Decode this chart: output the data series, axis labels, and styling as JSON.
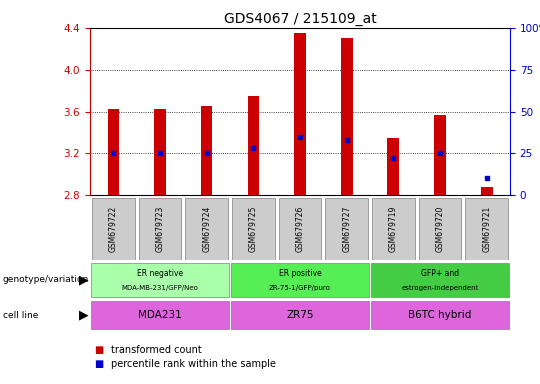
{
  "title": "GDS4067 / 215109_at",
  "samples": [
    "GSM679722",
    "GSM679723",
    "GSM679724",
    "GSM679725",
    "GSM679726",
    "GSM679727",
    "GSM679719",
    "GSM679720",
    "GSM679721"
  ],
  "bar_values": [
    3.62,
    3.62,
    3.65,
    3.75,
    4.35,
    4.3,
    3.35,
    3.57,
    2.88
  ],
  "bar_base": 2.8,
  "percentile_values": [
    25,
    25,
    25,
    28,
    35,
    33,
    22,
    25,
    10
  ],
  "ymin": 2.8,
  "ymax": 4.4,
  "yticks": [
    2.8,
    3.2,
    3.6,
    4.0,
    4.4
  ],
  "right_yticks": [
    0,
    25,
    50,
    75,
    100
  ],
  "bar_color": "#cc0000",
  "dot_color": "#0000cc",
  "genotype_groups": [
    {
      "label": "ER negative\nMDA-MB-231/GFP/Neo",
      "start": 0,
      "end": 3,
      "color": "#aaffaa"
    },
    {
      "label": "ER positive\nZR-75-1/GFP/puro",
      "start": 3,
      "end": 6,
      "color": "#55ee55"
    },
    {
      "label": "GFP+ and\nestrogen-independent",
      "start": 6,
      "end": 9,
      "color": "#44cc44"
    }
  ],
  "cellline_groups": [
    {
      "label": "MDA231",
      "start": 0,
      "end": 3
    },
    {
      "label": "ZR75",
      "start": 3,
      "end": 6
    },
    {
      "label": "B6TC hybrid",
      "start": 6,
      "end": 9
    }
  ],
  "cellline_color": "#dd66dd",
  "sample_bg_color": "#cccccc",
  "legend_items": [
    {
      "label": "transformed count",
      "color": "#cc0000"
    },
    {
      "label": "percentile rank within the sample",
      "color": "#0000cc"
    }
  ],
  "tick_color_left": "#cc0000",
  "tick_color_right": "#0000cc"
}
